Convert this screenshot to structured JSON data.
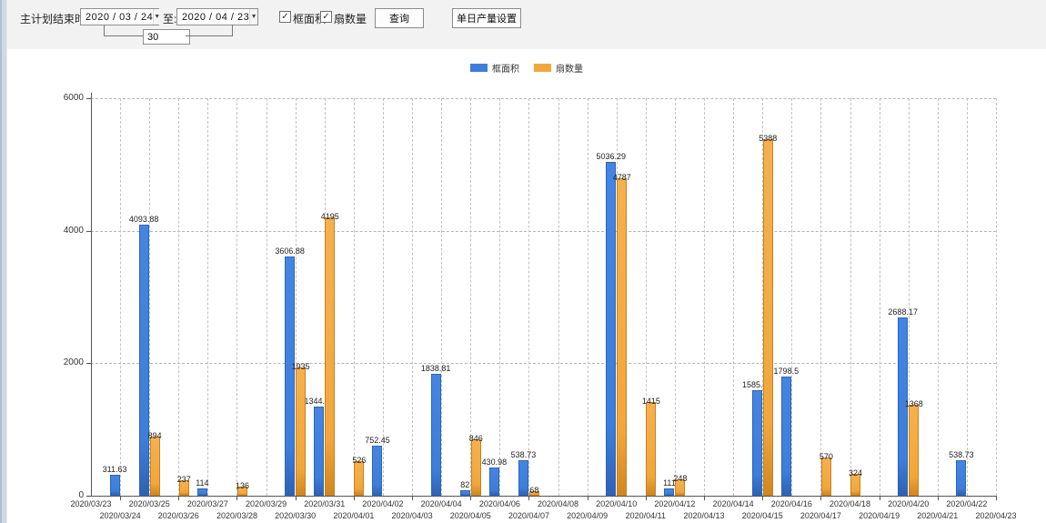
{
  "toolbar": {
    "main_label": "主计划结束时间:",
    "date_from": "2020 / 03 / 24",
    "to_label": "至:",
    "date_to": "2020 / 04 / 23",
    "days_between": "30",
    "checkbox_area_label": "框面积",
    "checkbox_fan_label": "扇数量",
    "checkbox_checked_glyph": "✓",
    "dropdown_arrow_icon": "▼",
    "query_button": "查询",
    "daily_output_button": "单日产量设置"
  },
  "legend": {
    "items": [
      {
        "label": "框面积",
        "color": "#3d7edb"
      },
      {
        "label": "扇数量",
        "color": "#f2a73c"
      }
    ]
  },
  "chart_data": {
    "type": "bar",
    "title": "",
    "xlabel": "",
    "ylabel": "",
    "ylim": [
      0,
      6000
    ],
    "yticks": [
      0,
      2000,
      4000,
      6000
    ],
    "grid": "dashed",
    "legend_position": "top-center",
    "categories": [
      "2020/03/23",
      "2020/03/24",
      "2020/03/25",
      "2020/03/26",
      "2020/03/27",
      "2020/03/28",
      "2020/03/29",
      "2020/03/30",
      "2020/03/31",
      "2020/04/01",
      "2020/04/02",
      "2020/04/03",
      "2020/04/04",
      "2020/04/05",
      "2020/04/06",
      "2020/04/07",
      "2020/04/08",
      "2020/04/09",
      "2020/04/10",
      "2020/04/11",
      "2020/04/12",
      "2020/04/13",
      "2020/04/14",
      "2020/04/15",
      "2020/04/16",
      "2020/04/17",
      "2020/04/18",
      "2020/04/19",
      "2020/04/20",
      "2020/04/21",
      "2020/04/22",
      "2020/04/23"
    ],
    "series": [
      {
        "name": "框面积",
        "color": "#3d7edb",
        "values": [
          0,
          311.63,
          4093.88,
          0,
          114,
          0,
          0,
          3606.88,
          1344.95,
          0,
          752.45,
          0,
          1838.81,
          82,
          430.98,
          538.73,
          0,
          0,
          5036.29,
          0,
          111,
          0,
          0,
          1585.96,
          1798.5,
          0,
          0,
          0,
          2688.17,
          0,
          538.73,
          0
        ]
      },
      {
        "name": "扇数量",
        "color": "#f2a73c",
        "values": [
          0,
          0,
          894,
          237,
          0,
          136,
          0,
          1935,
          4195,
          526,
          0,
          0,
          0,
          846,
          0,
          68,
          0,
          0,
          4787,
          1415,
          248,
          0,
          0,
          5388,
          0,
          570,
          324,
          0,
          1368,
          0,
          0,
          0
        ]
      }
    ]
  }
}
